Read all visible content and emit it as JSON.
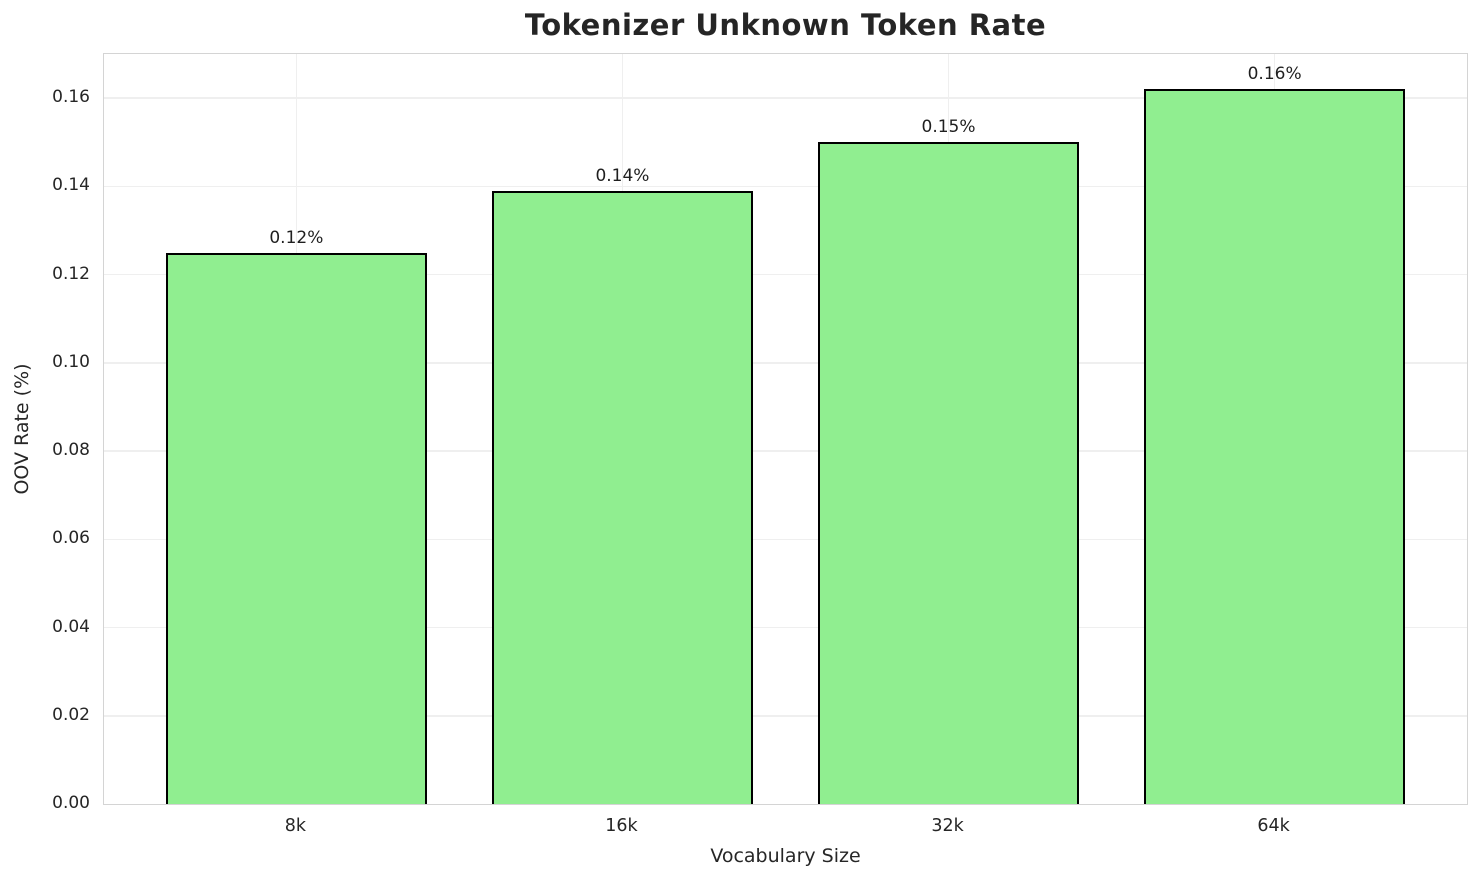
{
  "chart_data": {
    "type": "bar",
    "title": "Tokenizer Unknown Token Rate",
    "xlabel": "Vocabulary Size",
    "ylabel": "OOV Rate (%)",
    "categories": [
      "8k",
      "16k",
      "32k",
      "64k"
    ],
    "values": [
      0.125,
      0.139,
      0.15,
      0.162
    ],
    "bar_value_labels": [
      "0.12%",
      "0.14%",
      "0.15%",
      "0.16%"
    ],
    "yticks": [
      0.0,
      0.02,
      0.04,
      0.06,
      0.08,
      0.1,
      0.12,
      0.14,
      0.16
    ],
    "ytick_labels": [
      "0.00",
      "0.02",
      "0.04",
      "0.06",
      "0.08",
      "0.10",
      "0.12",
      "0.14",
      "0.16"
    ],
    "ylim": [
      0,
      0.17
    ],
    "xlim": [
      -0.59,
      3.59
    ],
    "bar_width": 0.8,
    "grid": true,
    "legend": "none",
    "colors": {
      "bar_fill": "#90EE90",
      "bar_edge": "#000000",
      "gridline": "#efefef",
      "spine": "#d4d4d4",
      "text": "#262626",
      "background": "#ffffff"
    }
  }
}
